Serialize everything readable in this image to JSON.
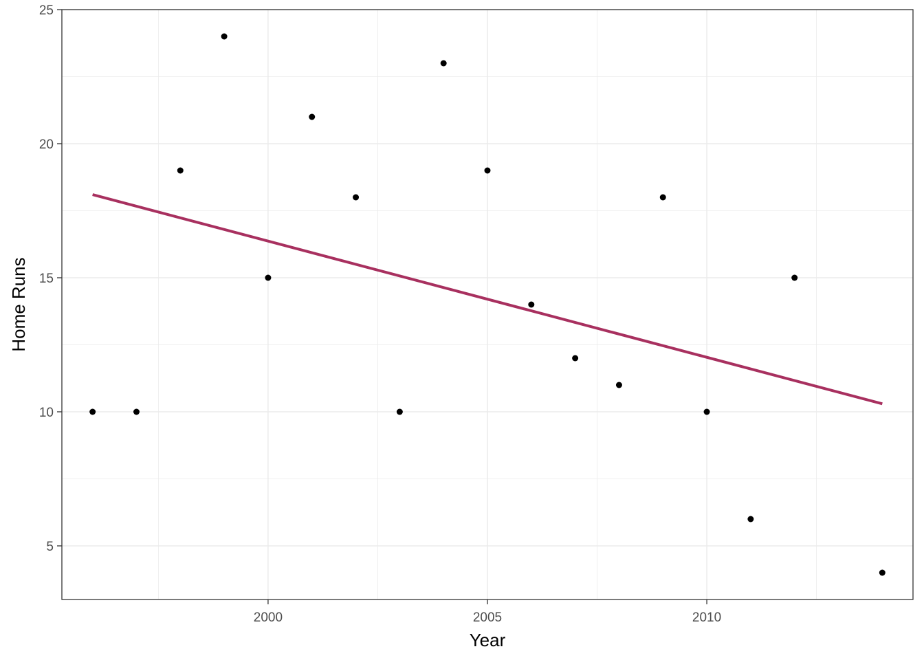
{
  "chart_data": {
    "type": "scatter",
    "title": "",
    "xlabel": "Year",
    "ylabel": "Home Runs",
    "xlim": [
      1995.3,
      2014.7
    ],
    "ylim": [
      3.0,
      25.0
    ],
    "x_ticks": [
      2000,
      2005,
      2010
    ],
    "x_tick_labels": [
      "2000",
      "2005",
      "2010"
    ],
    "y_ticks": [
      5,
      10,
      15,
      20,
      25
    ],
    "y_tick_labels": [
      "5",
      "10",
      "15",
      "20",
      "25"
    ],
    "grid": true,
    "legend": "none",
    "series": [
      {
        "x": [
          1996,
          1997,
          1998,
          1999,
          2000,
          2001,
          2002,
          2003,
          2004,
          2005,
          2006,
          2007,
          2008,
          2009,
          2010,
          2011,
          2012,
          2014
        ],
        "y": [
          10,
          10,
          19,
          24,
          15,
          21,
          18,
          10,
          23,
          19,
          14,
          12,
          11,
          18,
          10,
          6,
          15,
          4
        ],
        "color": "#000000"
      }
    ],
    "trend_line": {
      "x": [
        1996,
        2014
      ],
      "y": [
        18.1,
        10.3
      ],
      "color": "#a8305f"
    },
    "panel_background": "#ffffff",
    "grid_color": "#ebebeb",
    "border_color": "#333333"
  }
}
